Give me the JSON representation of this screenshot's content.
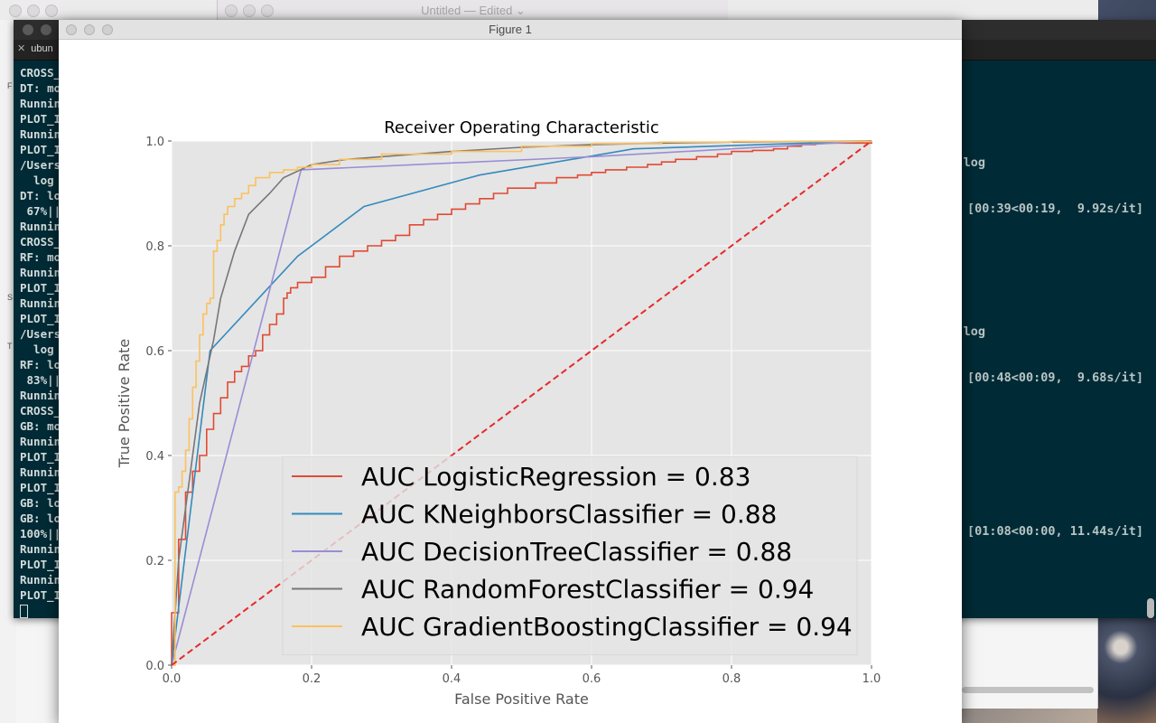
{
  "textedit": {
    "title": "Untitled — Edited ⌄"
  },
  "terminal": {
    "tab_label": "ubun",
    "lines": [
      "CROSS_",
      "DT: mo",
      "Runnin",
      "PLOT_I",
      "Runnin",
      "PLOT_I",
      "/Users",
      "  log",
      "DT: lo",
      " 67%||",
      "Runnin",
      "CROSS_",
      "RF: mo",
      "Runnin",
      "PLOT_I",
      "Runnin",
      "PLOT_I",
      "/Users",
      "  log",
      "RF: lo",
      " 83%||",
      "Runnin",
      "CROSS_",
      "GB: mo",
      "Runnin",
      "PLOT_I",
      "Runnin",
      "PLOT_I",
      "GB: lo",
      "GB: lo",
      "100%||",
      "Runnin",
      "PLOT_I",
      "Runnin",
      "PLOT_I"
    ],
    "right_texts": [
      {
        "text": "d in log"
      },
      {
        "text": "[00:39<00:19,  9.92s/it]"
      },
      {
        "text": "d in log"
      },
      {
        "text": "[00:48<00:09,  9.68s/it]"
      },
      {
        "text": "[01:08<00:00, 11.44s/it]"
      }
    ],
    "left_side_letters": [
      "F",
      "S",
      "T"
    ]
  },
  "figure": {
    "window_title": "Figure 1",
    "chart_data": {
      "type": "line",
      "title": "Receiver Operating Characteristic",
      "xlabel": "False Positive Rate",
      "ylabel": "True Positive Rate",
      "xlim": [
        0.0,
        1.0
      ],
      "ylim": [
        0.0,
        1.0
      ],
      "x_ticks": [
        "0.0",
        "0.2",
        "0.4",
        "0.6",
        "0.8",
        "1.0"
      ],
      "y_ticks": [
        "0.0",
        "0.2",
        "0.4",
        "0.6",
        "0.8",
        "1.0"
      ],
      "grid": true,
      "legend_position": "lower-right",
      "series": [
        {
          "name": "AUC LogisticRegression = 0.83",
          "color": "#e24a33",
          "step": true,
          "x": [
            0,
            0,
            0.01,
            0.01,
            0.02,
            0.02,
            0.03,
            0.04,
            0.05,
            0.06,
            0.07,
            0.08,
            0.09,
            0.1,
            0.11,
            0.12,
            0.13,
            0.14,
            0.15,
            0.16,
            0.165,
            0.17,
            0.18,
            0.2,
            0.22,
            0.24,
            0.26,
            0.28,
            0.3,
            0.32,
            0.34,
            0.36,
            0.38,
            0.4,
            0.42,
            0.44,
            0.46,
            0.48,
            0.5,
            0.52,
            0.55,
            0.58,
            0.6,
            0.62,
            0.65,
            0.68,
            0.7,
            0.72,
            0.75,
            0.78,
            0.8,
            0.83,
            0.86,
            0.88,
            0.9,
            0.92,
            1.0
          ],
          "y": [
            0,
            0.1,
            0.15,
            0.24,
            0.3,
            0.33,
            0.37,
            0.4,
            0.45,
            0.48,
            0.51,
            0.54,
            0.56,
            0.57,
            0.59,
            0.6,
            0.63,
            0.65,
            0.67,
            0.7,
            0.71,
            0.72,
            0.73,
            0.74,
            0.76,
            0.78,
            0.79,
            0.8,
            0.81,
            0.82,
            0.84,
            0.85,
            0.86,
            0.87,
            0.88,
            0.89,
            0.9,
            0.91,
            0.91,
            0.92,
            0.93,
            0.935,
            0.94,
            0.945,
            0.95,
            0.955,
            0.96,
            0.965,
            0.97,
            0.975,
            0.98,
            0.982,
            0.985,
            0.99,
            0.993,
            0.996,
            1.0
          ]
        },
        {
          "name": "AUC KNeighborsClassifier = 0.88",
          "color": "#348abd",
          "step": false,
          "x": [
            0,
            0.055,
            0.18,
            0.275,
            0.44,
            0.66,
            1.0
          ],
          "y": [
            0,
            0.6,
            0.78,
            0.875,
            0.935,
            0.985,
            1.0
          ]
        },
        {
          "name": "AUC DecisionTreeClassifier = 0.88",
          "color": "#988ed5",
          "step": false,
          "x": [
            0,
            0.185,
            0.6,
            1.0
          ],
          "y": [
            0,
            0.945,
            0.97,
            1.0
          ]
        },
        {
          "name": "AUC RandomForestClassifier = 0.94",
          "color": "#777777",
          "step": false,
          "x": [
            0,
            0.005,
            0.01,
            0.02,
            0.03,
            0.04,
            0.06,
            0.07,
            0.09,
            0.11,
            0.14,
            0.16,
            0.2,
            0.25,
            0.3,
            0.4,
            0.5,
            0.6,
            0.7,
            0.8,
            0.9,
            1.0
          ],
          "y": [
            0,
            0.1,
            0.2,
            0.3,
            0.4,
            0.5,
            0.62,
            0.7,
            0.79,
            0.86,
            0.9,
            0.93,
            0.955,
            0.965,
            0.97,
            0.98,
            0.988,
            0.993,
            0.996,
            0.998,
            0.999,
            1.0
          ]
        },
        {
          "name": "AUC GradientBoostingClassifier = 0.94",
          "color": "#fbc15e",
          "step": true,
          "x": [
            0,
            0.005,
            0.01,
            0.015,
            0.02,
            0.025,
            0.03,
            0.035,
            0.04,
            0.045,
            0.05,
            0.055,
            0.06,
            0.065,
            0.07,
            0.075,
            0.08,
            0.09,
            0.1,
            0.11,
            0.12,
            0.14,
            0.16,
            0.18,
            0.2,
            0.24,
            0.3,
            0.4,
            0.5,
            0.6,
            0.7,
            0.8,
            1.0
          ],
          "y": [
            0,
            0.33,
            0.34,
            0.37,
            0.41,
            0.47,
            0.53,
            0.58,
            0.63,
            0.67,
            0.69,
            0.7,
            0.79,
            0.81,
            0.84,
            0.86,
            0.875,
            0.89,
            0.9,
            0.915,
            0.93,
            0.94,
            0.945,
            0.95,
            0.955,
            0.965,
            0.975,
            0.98,
            0.99,
            0.995,
            0.998,
            0.999,
            1.0
          ]
        },
        {
          "name": "",
          "color": "#e62a2a",
          "dashed": true,
          "x": [
            0,
            1
          ],
          "y": [
            0,
            1
          ]
        }
      ]
    }
  }
}
